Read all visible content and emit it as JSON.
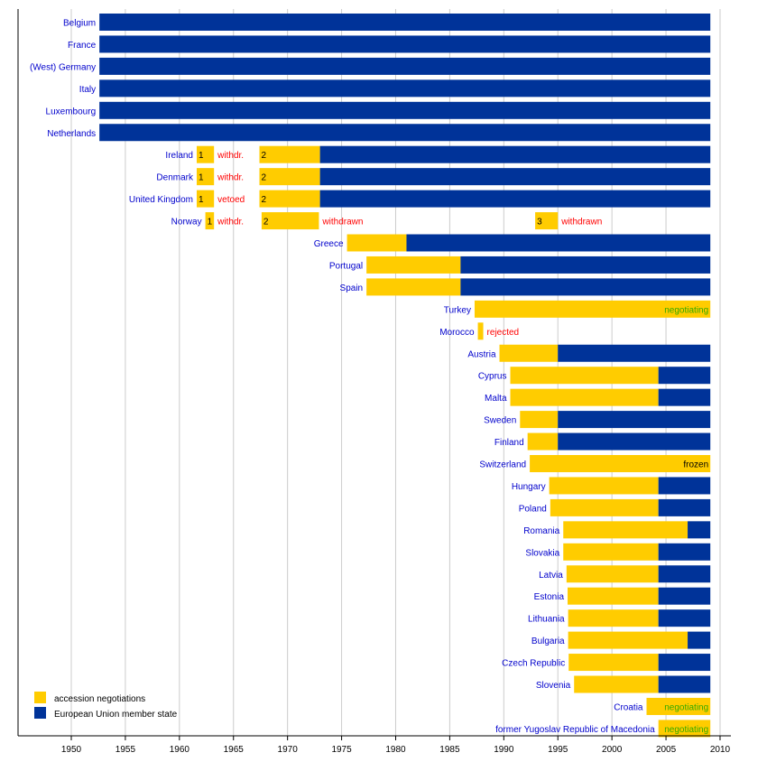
{
  "chart_data": {
    "type": "bar",
    "subtype": "horizontal-timeline",
    "title": "",
    "xlabel": "",
    "ylabel": "",
    "xlim": [
      1945.1,
      2010.9
    ],
    "xticks": [
      1950,
      1955,
      1960,
      1965,
      1970,
      1975,
      1980,
      1985,
      1990,
      1995,
      2000,
      2005,
      2010
    ],
    "grid": true,
    "legend_position": "bottom-left",
    "colors": {
      "negotiation": "#ffcc00",
      "member": "#003399",
      "label": "#0000cc",
      "failed": "#ff0000",
      "ongoing": "#33aa00",
      "neutral": "#000000"
    },
    "legend": [
      {
        "key": "negotiation",
        "label": "accession negotiations"
      },
      {
        "key": "member",
        "label": "European Union member state"
      }
    ],
    "rows": [
      {
        "country": "Belgium",
        "segments": [
          {
            "type": "member",
            "start": 1952.6,
            "end": 2009.1
          }
        ]
      },
      {
        "country": "France",
        "segments": [
          {
            "type": "member",
            "start": 1952.6,
            "end": 2009.1
          }
        ]
      },
      {
        "country": "(West) Germany",
        "segments": [
          {
            "type": "member",
            "start": 1952.6,
            "end": 2009.1
          }
        ]
      },
      {
        "country": "Italy",
        "segments": [
          {
            "type": "member",
            "start": 1952.6,
            "end": 2009.1
          }
        ]
      },
      {
        "country": "Luxembourg",
        "segments": [
          {
            "type": "member",
            "start": 1952.6,
            "end": 2009.1
          }
        ]
      },
      {
        "country": "Netherlands",
        "segments": [
          {
            "type": "member",
            "start": 1952.6,
            "end": 2009.1
          }
        ]
      },
      {
        "country": "Ireland",
        "segments": [
          {
            "type": "negotiation",
            "start": 1961.6,
            "end": 1963.2,
            "text": "1",
            "note": "withdr.",
            "note_color": "failed"
          },
          {
            "type": "negotiation",
            "start": 1967.4,
            "end": 1973.0,
            "text": "2"
          },
          {
            "type": "member",
            "start": 1973.0,
            "end": 2009.1
          }
        ]
      },
      {
        "country": "Denmark",
        "segments": [
          {
            "type": "negotiation",
            "start": 1961.6,
            "end": 1963.2,
            "text": "1",
            "note": "withdr.",
            "note_color": "failed"
          },
          {
            "type": "negotiation",
            "start": 1967.4,
            "end": 1973.0,
            "text": "2"
          },
          {
            "type": "member",
            "start": 1973.0,
            "end": 2009.1
          }
        ]
      },
      {
        "country": "United Kingdom",
        "segments": [
          {
            "type": "negotiation",
            "start": 1961.6,
            "end": 1963.2,
            "text": "1",
            "note": "vetoed",
            "note_color": "failed"
          },
          {
            "type": "negotiation",
            "start": 1967.4,
            "end": 1973.0,
            "text": "2"
          },
          {
            "type": "member",
            "start": 1973.0,
            "end": 2009.1
          }
        ]
      },
      {
        "country": "Norway",
        "segments": [
          {
            "type": "negotiation",
            "start": 1962.4,
            "end": 1963.2,
            "text": "1",
            "note": "withdr.",
            "note_color": "failed"
          },
          {
            "type": "negotiation",
            "start": 1967.6,
            "end": 1972.9,
            "text": "2",
            "note": "withdrawn",
            "note_color": "failed"
          },
          {
            "type": "negotiation",
            "start": 1992.9,
            "end": 1995.0,
            "text": "3",
            "note": "withdrawn",
            "note_color": "failed"
          }
        ]
      },
      {
        "country": "Greece",
        "segments": [
          {
            "type": "negotiation",
            "start": 1975.5,
            "end": 1981.0
          },
          {
            "type": "member",
            "start": 1981.0,
            "end": 2009.1
          }
        ]
      },
      {
        "country": "Portugal",
        "segments": [
          {
            "type": "negotiation",
            "start": 1977.3,
            "end": 1986.0
          },
          {
            "type": "member",
            "start": 1986.0,
            "end": 2009.1
          }
        ]
      },
      {
        "country": "Spain",
        "segments": [
          {
            "type": "negotiation",
            "start": 1977.3,
            "end": 1986.0
          },
          {
            "type": "member",
            "start": 1986.0,
            "end": 2009.1
          }
        ]
      },
      {
        "country": "Turkey",
        "segments": [
          {
            "type": "negotiation",
            "start": 1987.3,
            "end": 2009.1,
            "inner_text": "negotiating",
            "inner_color": "ongoing"
          }
        ]
      },
      {
        "country": "Morocco",
        "segments": [
          {
            "type": "negotiation",
            "start": 1987.6,
            "end": 1988.1,
            "note": "rejected",
            "note_color": "failed"
          }
        ]
      },
      {
        "country": "Austria",
        "segments": [
          {
            "type": "negotiation",
            "start": 1989.6,
            "end": 1995.0
          },
          {
            "type": "member",
            "start": 1995.0,
            "end": 2009.1
          }
        ]
      },
      {
        "country": "Cyprus",
        "segments": [
          {
            "type": "negotiation",
            "start": 1990.6,
            "end": 2004.3
          },
          {
            "type": "member",
            "start": 2004.3,
            "end": 2009.1
          }
        ]
      },
      {
        "country": "Malta",
        "segments": [
          {
            "type": "negotiation",
            "start": 1990.6,
            "end": 2004.3
          },
          {
            "type": "member",
            "start": 2004.3,
            "end": 2009.1
          }
        ]
      },
      {
        "country": "Sweden",
        "segments": [
          {
            "type": "negotiation",
            "start": 1991.5,
            "end": 1995.0
          },
          {
            "type": "member",
            "start": 1995.0,
            "end": 2009.1
          }
        ]
      },
      {
        "country": "Finland",
        "segments": [
          {
            "type": "negotiation",
            "start": 1992.2,
            "end": 1995.0
          },
          {
            "type": "member",
            "start": 1995.0,
            "end": 2009.1
          }
        ]
      },
      {
        "country": "Switzerland",
        "segments": [
          {
            "type": "negotiation",
            "start": 1992.4,
            "end": 2009.1,
            "inner_text": "frozen",
            "inner_color": "neutral"
          }
        ]
      },
      {
        "country": "Hungary",
        "segments": [
          {
            "type": "negotiation",
            "start": 1994.2,
            "end": 2004.3
          },
          {
            "type": "member",
            "start": 2004.3,
            "end": 2009.1
          }
        ]
      },
      {
        "country": "Poland",
        "segments": [
          {
            "type": "negotiation",
            "start": 1994.3,
            "end": 2004.3
          },
          {
            "type": "member",
            "start": 2004.3,
            "end": 2009.1
          }
        ]
      },
      {
        "country": "Romania",
        "segments": [
          {
            "type": "negotiation",
            "start": 1995.5,
            "end": 2007.0
          },
          {
            "type": "member",
            "start": 2007.0,
            "end": 2009.1
          }
        ]
      },
      {
        "country": "Slovakia",
        "segments": [
          {
            "type": "negotiation",
            "start": 1995.5,
            "end": 2004.3
          },
          {
            "type": "member",
            "start": 2004.3,
            "end": 2009.1
          }
        ]
      },
      {
        "country": "Latvia",
        "segments": [
          {
            "type": "negotiation",
            "start": 1995.8,
            "end": 2004.3
          },
          {
            "type": "member",
            "start": 2004.3,
            "end": 2009.1
          }
        ]
      },
      {
        "country": "Estonia",
        "segments": [
          {
            "type": "negotiation",
            "start": 1995.9,
            "end": 2004.3
          },
          {
            "type": "member",
            "start": 2004.3,
            "end": 2009.1
          }
        ]
      },
      {
        "country": "Lithuania",
        "segments": [
          {
            "type": "negotiation",
            "start": 1995.95,
            "end": 2004.3
          },
          {
            "type": "member",
            "start": 2004.3,
            "end": 2009.1
          }
        ]
      },
      {
        "country": "Bulgaria",
        "segments": [
          {
            "type": "negotiation",
            "start": 1995.95,
            "end": 2007.0
          },
          {
            "type": "member",
            "start": 2007.0,
            "end": 2009.1
          }
        ]
      },
      {
        "country": "Czech Republic",
        "segments": [
          {
            "type": "negotiation",
            "start": 1996.0,
            "end": 2004.3
          },
          {
            "type": "member",
            "start": 2004.3,
            "end": 2009.1
          }
        ]
      },
      {
        "country": "Slovenia",
        "segments": [
          {
            "type": "negotiation",
            "start": 1996.5,
            "end": 2004.3
          },
          {
            "type": "member",
            "start": 2004.3,
            "end": 2009.1
          }
        ]
      },
      {
        "country": "Croatia",
        "segments": [
          {
            "type": "negotiation",
            "start": 2003.2,
            "end": 2009.1,
            "inner_text": "negotiating",
            "inner_color": "ongoing"
          }
        ]
      },
      {
        "country": "former Yugoslav Republic of Macedonia",
        "segments": [
          {
            "type": "negotiation",
            "start": 2004.3,
            "end": 2009.1,
            "inner_text": "negotiating",
            "inner_color": "ongoing"
          }
        ]
      }
    ]
  }
}
